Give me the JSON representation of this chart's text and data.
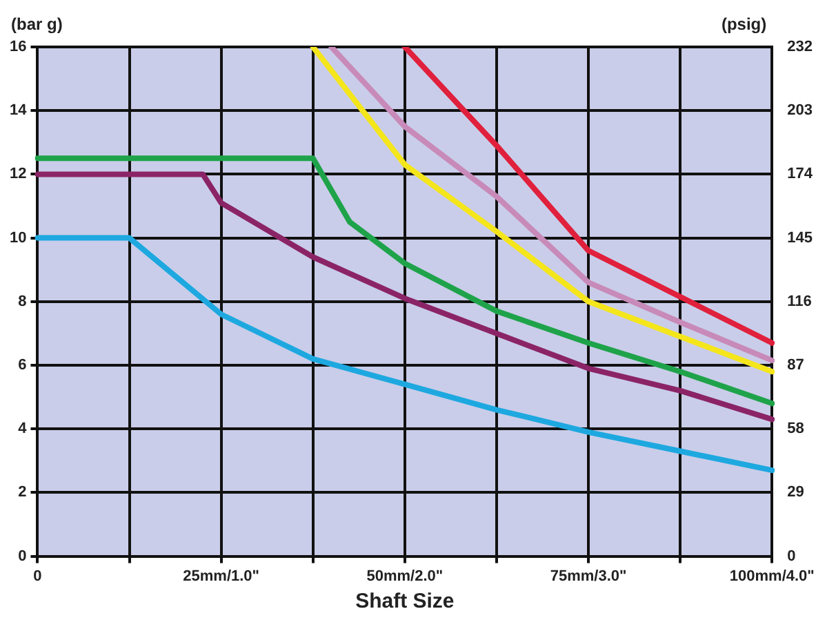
{
  "chart_data": {
    "type": "line",
    "xlabel": "Shaft Size",
    "ylabel": "(bar g)",
    "y2label": "(psig)",
    "categories": [
      "0",
      null,
      null,
      null,
      null,
      null,
      null,
      null,
      null,
      null,
      "25mm/1.0\"",
      null,
      null,
      null,
      null,
      null,
      null,
      null,
      null,
      null,
      "50mm/2.0\"",
      null,
      null,
      null,
      null,
      null,
      null,
      null,
      null,
      null,
      "75mm/3.0\"",
      null,
      null,
      null,
      null,
      null,
      null,
      null,
      null,
      null,
      "100mm/4.0\""
    ],
    "ylim": [
      0,
      16
    ],
    "yticks": [
      0,
      2,
      4,
      6,
      8,
      10,
      12,
      14,
      16
    ],
    "y2lim": [
      0,
      232
    ],
    "y2ticks": [
      0,
      29,
      58,
      87,
      116,
      145,
      174,
      203,
      232
    ],
    "grid": true,
    "legend": false,
    "marker": "none",
    "line_style": "solid",
    "series": [
      {
        "color": "#1ea8e0",
        "values": [
          10,
          null,
          null,
          null,
          null,
          10,
          null,
          null,
          null,
          null,
          7.6,
          null,
          null,
          null,
          null,
          6.2,
          null,
          null,
          null,
          null,
          5.4,
          null,
          null,
          null,
          null,
          4.6,
          null,
          null,
          null,
          null,
          3.9,
          null,
          null,
          null,
          null,
          3.3,
          null,
          null,
          null,
          null,
          2.7
        ]
      },
      {
        "color": "#8b2466",
        "values": [
          12,
          null,
          null,
          null,
          null,
          12,
          null,
          null,
          null,
          12,
          11.1,
          null,
          null,
          null,
          null,
          9.4,
          null,
          null,
          null,
          null,
          8.1,
          null,
          null,
          null,
          null,
          7,
          null,
          null,
          null,
          null,
          5.9,
          null,
          null,
          null,
          null,
          5.2,
          null,
          null,
          null,
          null,
          4.3
        ]
      },
      {
        "color": "#1fa34a",
        "values": [
          12.5,
          null,
          null,
          null,
          null,
          12.5,
          null,
          null,
          null,
          null,
          12.5,
          null,
          null,
          null,
          null,
          12.5,
          null,
          10.5,
          null,
          null,
          9.2,
          null,
          null,
          null,
          null,
          7.7,
          null,
          null,
          null,
          null,
          6.7,
          null,
          null,
          null,
          null,
          5.8,
          null,
          null,
          null,
          null,
          4.8
        ]
      },
      {
        "color": "#f5e61c",
        "values": [
          null,
          null,
          null,
          null,
          null,
          null,
          null,
          null,
          null,
          null,
          null,
          null,
          null,
          null,
          null,
          16,
          null,
          null,
          null,
          null,
          12.3,
          null,
          null,
          null,
          null,
          10.2,
          null,
          null,
          null,
          null,
          8,
          null,
          null,
          null,
          null,
          6.9,
          null,
          null,
          null,
          null,
          5.8
        ]
      },
      {
        "color": "#c88ab8",
        "values": [
          null,
          null,
          null,
          null,
          null,
          null,
          null,
          null,
          null,
          null,
          null,
          null,
          null,
          null,
          null,
          null,
          16,
          null,
          null,
          null,
          13.5,
          null,
          null,
          null,
          null,
          11.3,
          null,
          null,
          null,
          null,
          8.6,
          null,
          null,
          null,
          null,
          7.35,
          null,
          null,
          null,
          null,
          6.15
        ]
      },
      {
        "color": "#e0203c",
        "values": [
          null,
          null,
          null,
          null,
          null,
          null,
          null,
          null,
          null,
          null,
          null,
          null,
          null,
          null,
          null,
          null,
          null,
          null,
          null,
          null,
          16,
          null,
          null,
          null,
          null,
          12.9,
          null,
          null,
          null,
          null,
          9.6,
          null,
          null,
          null,
          null,
          8.15,
          null,
          null,
          null,
          null,
          6.7
        ]
      }
    ]
  }
}
